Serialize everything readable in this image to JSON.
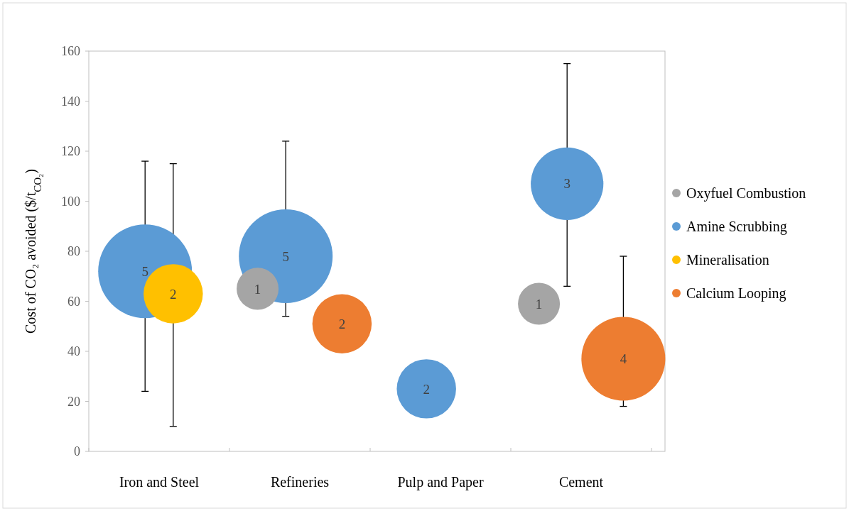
{
  "chart_data": {
    "type": "bubble",
    "ylabel": "Cost of CO₂ avoided ($/t$_{CO₂}$)",
    "categories": [
      "Iron and Steel",
      "Refineries",
      "Pulp and Paper",
      "Cement"
    ],
    "ylim": [
      0,
      160
    ],
    "yticks": [
      0,
      20,
      40,
      60,
      80,
      100,
      120,
      140,
      160
    ],
    "legend": "right",
    "series": [
      {
        "name": "Oxyfuel Combustion",
        "color": "#a5a5a5",
        "values": [
          null,
          65,
          null,
          59
        ],
        "sizes": [
          null,
          0.2,
          null,
          0.2
        ],
        "errors": [
          null,
          null,
          null,
          null
        ]
      },
      {
        "name": "Amine Scrubbing",
        "color": "#5b9bd5",
        "values": [
          72,
          78,
          25,
          107
        ],
        "sizes": [
          1,
          1,
          0.4,
          0.6
        ],
        "errors": [
          [
            24,
            116
          ],
          [
            54,
            124
          ],
          null,
          [
            66,
            155
          ]
        ]
      },
      {
        "name": "Mineralisation",
        "color": "#ffc000",
        "values": [
          63,
          null,
          null,
          null
        ],
        "sizes": [
          0.4,
          null,
          null,
          null
        ],
        "errors": [
          [
            10,
            115
          ],
          null,
          null,
          null
        ]
      },
      {
        "name": "Calcium Looping",
        "color": "#ed7d31",
        "values": [
          null,
          51,
          null,
          37
        ],
        "sizes": [
          null,
          0.4,
          null,
          0.8
        ],
        "errors": [
          null,
          null,
          null,
          [
            18,
            78
          ]
        ]
      }
    ],
    "annotations": [
      "1",
      "1",
      "5",
      "5",
      "2",
      "3",
      "2",
      "2",
      "4"
    ]
  }
}
